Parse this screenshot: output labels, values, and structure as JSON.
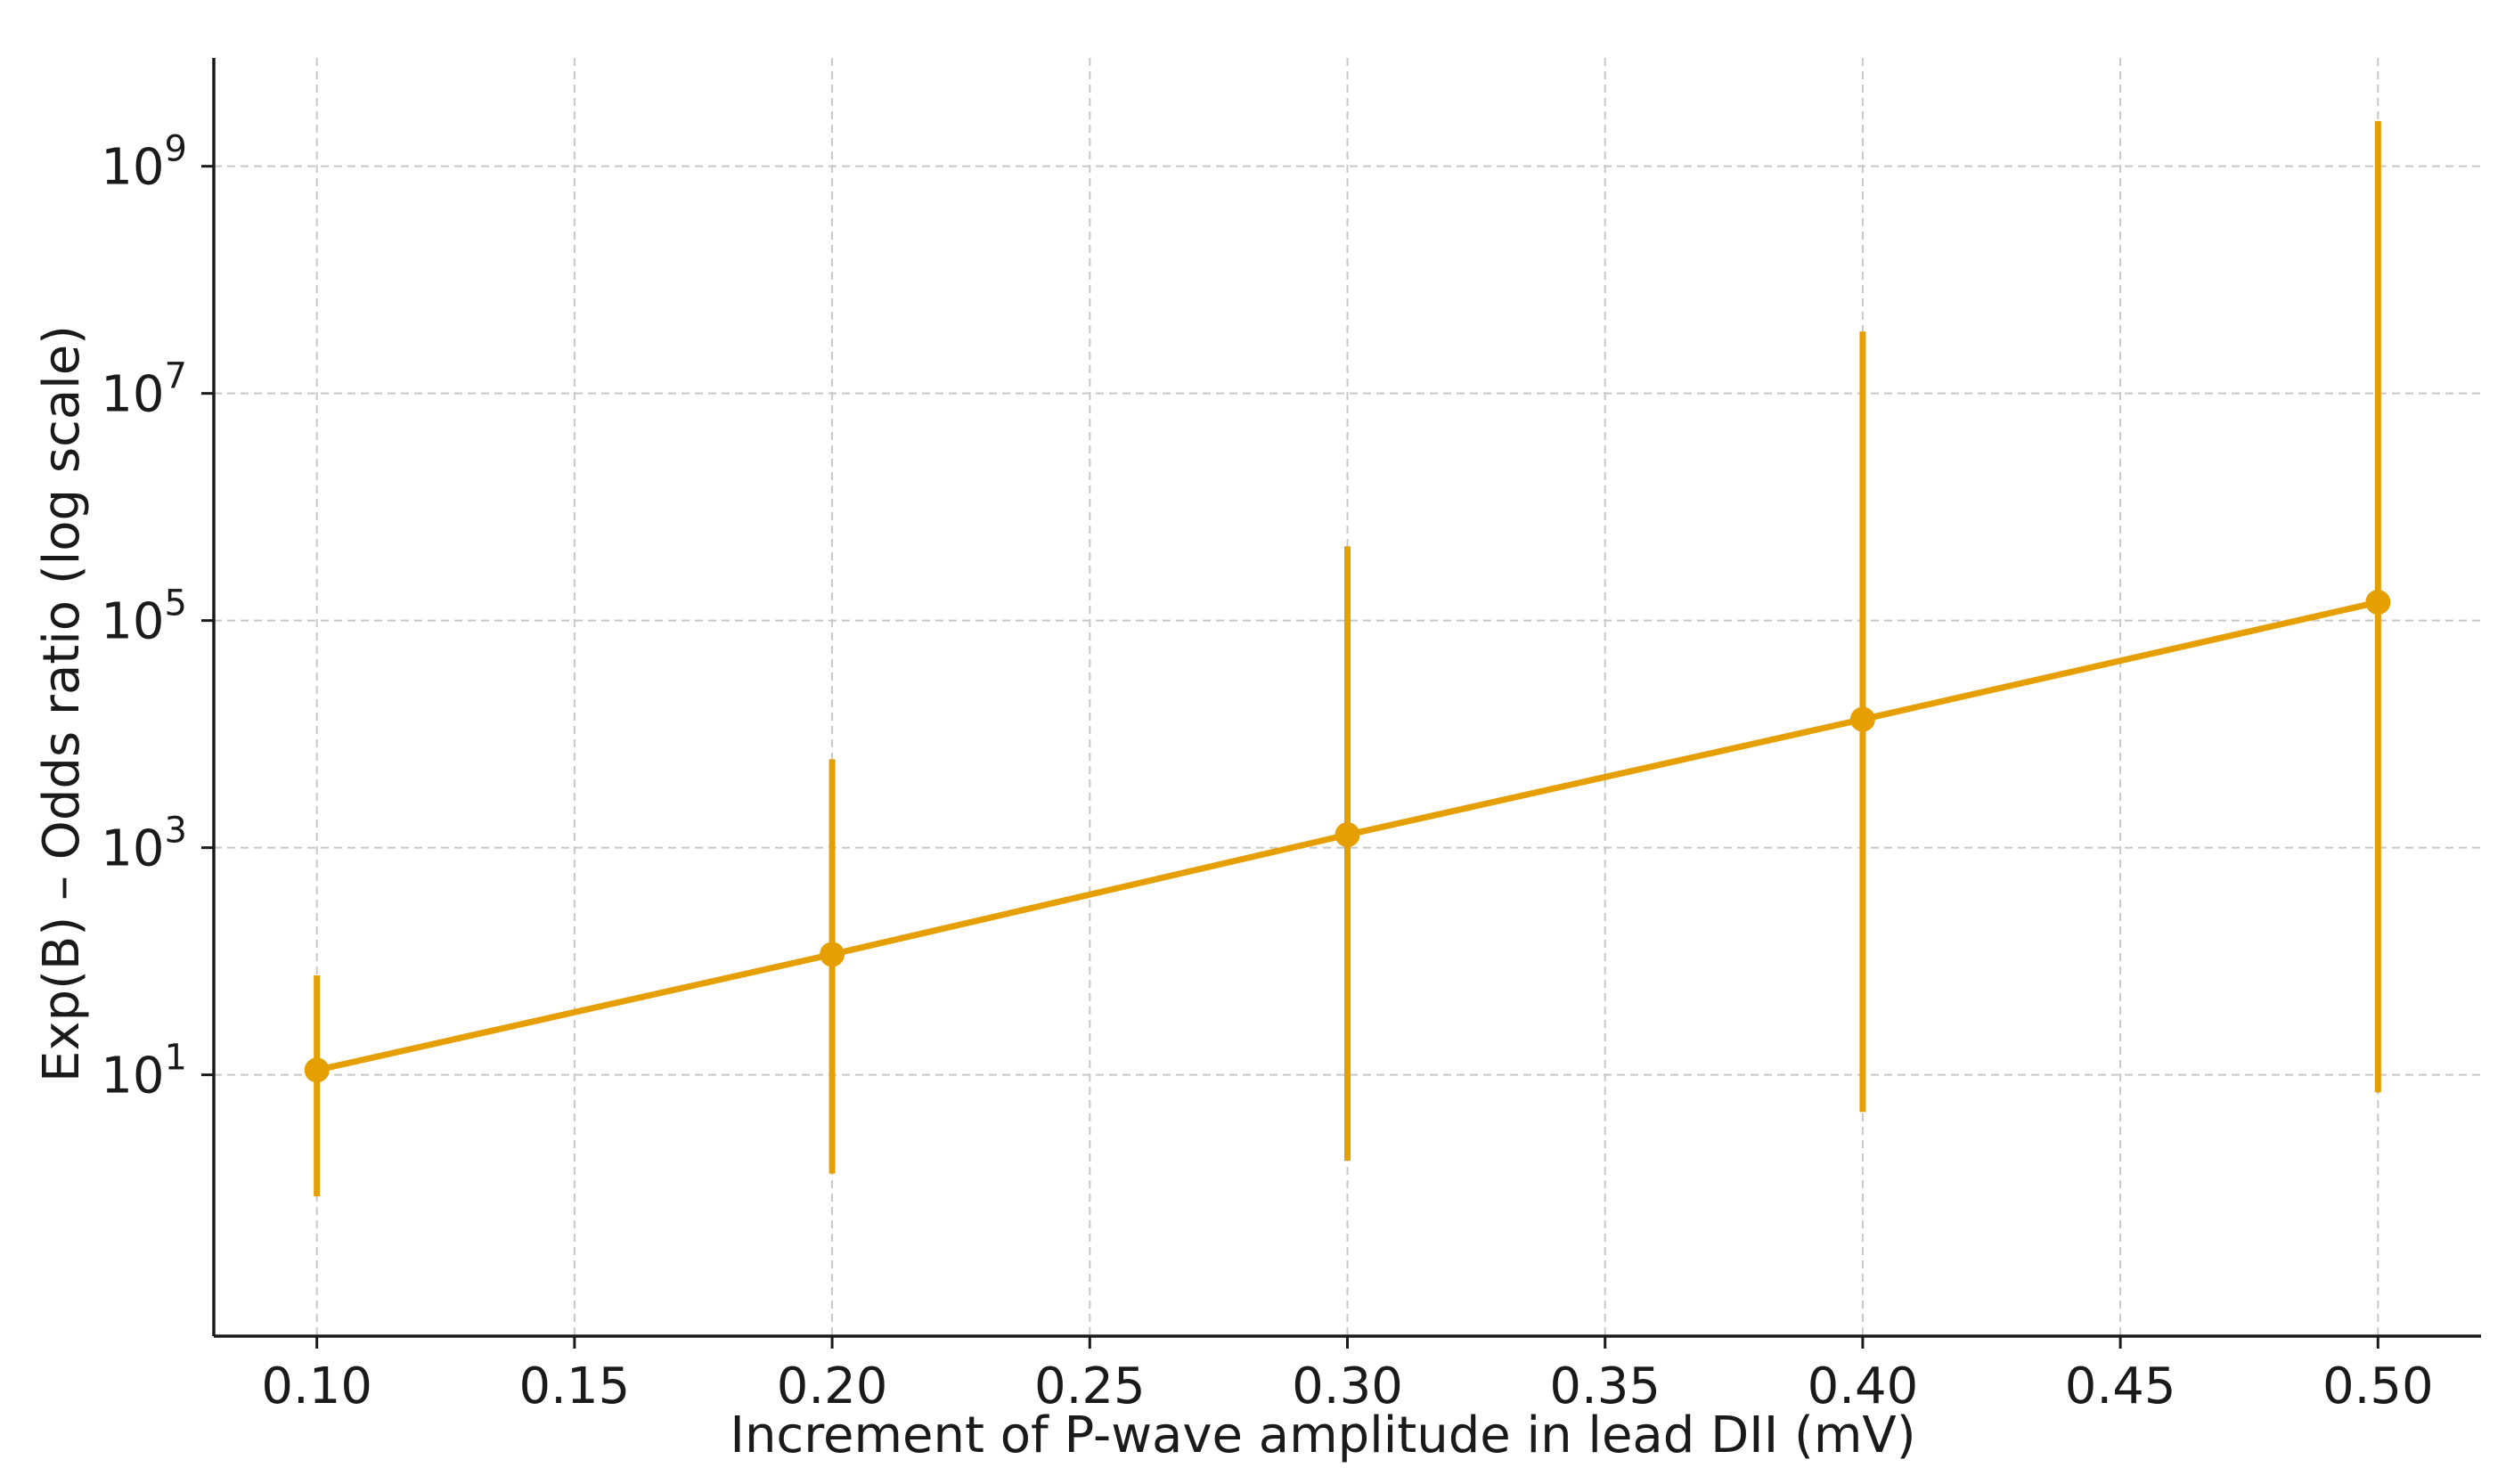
{
  "chart_data": {
    "type": "line",
    "title": "",
    "xlabel": "Increment of P-wave amplitude in lead DII (mV)",
    "ylabel": "Exp(B) – Odds ratio (log scale)",
    "y_scale": "log",
    "xlim": [
      0.08,
      0.52
    ],
    "ylim": [
      0.05,
      9000000000
    ],
    "grid": true,
    "x_ticks": [
      0.1,
      0.15,
      0.2,
      0.25,
      0.3,
      0.35,
      0.4,
      0.45,
      0.5
    ],
    "x_tick_labels": [
      "0.10",
      "0.15",
      "0.20",
      "0.25",
      "0.30",
      "0.35",
      "0.40",
      "0.45",
      "0.50"
    ],
    "y_ticks": [
      {
        "value": 10,
        "base": "10",
        "exp": "1"
      },
      {
        "value": 1000,
        "base": "10",
        "exp": "3"
      },
      {
        "value": 100000,
        "base": "10",
        "exp": "5"
      },
      {
        "value": 10000000,
        "base": "10",
        "exp": "7"
      },
      {
        "value": 1000000000,
        "base": "10",
        "exp": "9"
      }
    ],
    "series": [
      {
        "color": "#E69F00",
        "points": [
          {
            "x": 0.1,
            "y": 11,
            "ci_low": 0.85,
            "ci_high": 75
          },
          {
            "x": 0.2,
            "y": 115,
            "ci_low": 1.35,
            "ci_high": 6000
          },
          {
            "x": 0.3,
            "y": 1300,
            "ci_low": 1.75,
            "ci_high": 450000
          },
          {
            "x": 0.4,
            "y": 13500,
            "ci_low": 4.7,
            "ci_high": 35000000
          },
          {
            "x": 0.5,
            "y": 145000,
            "ci_low": 7.0,
            "ci_high": 2500000000
          }
        ]
      }
    ]
  }
}
